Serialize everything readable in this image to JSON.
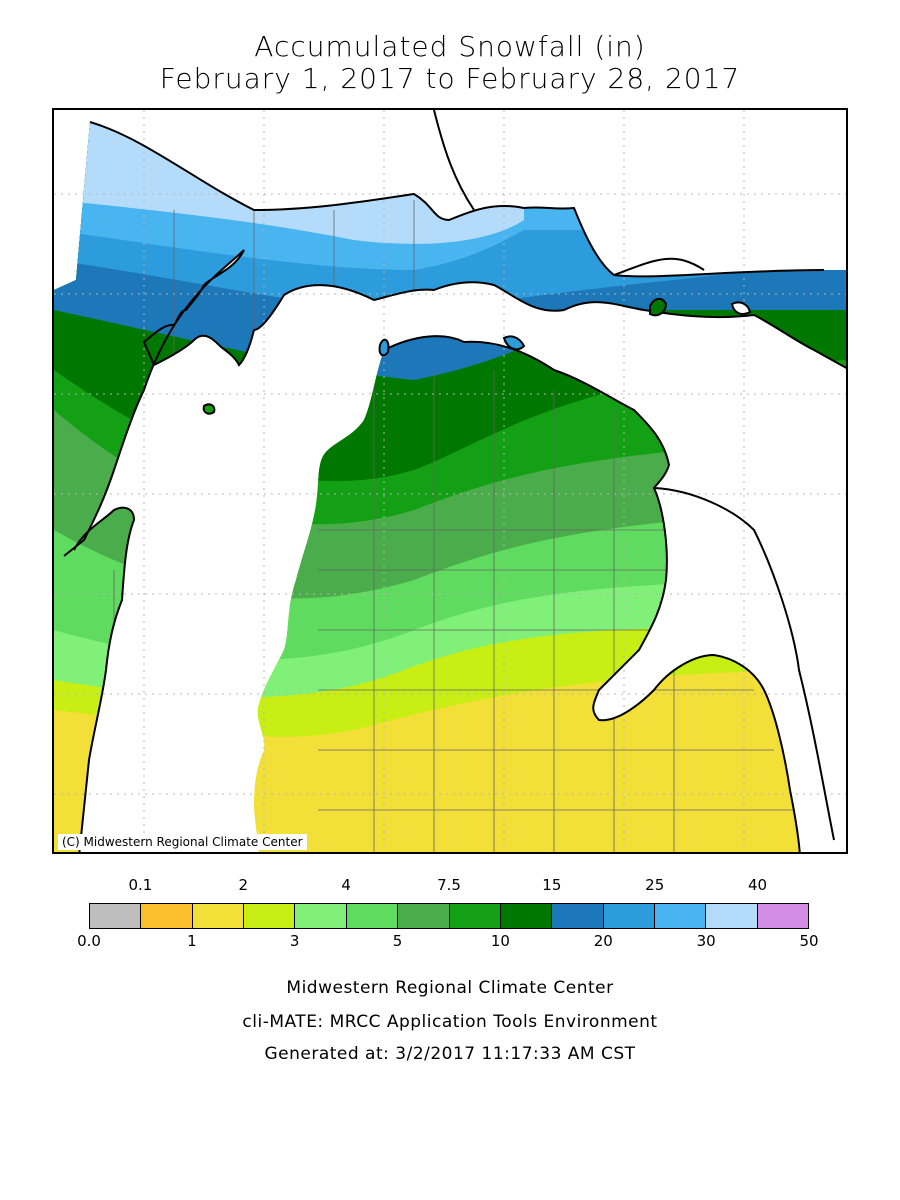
{
  "title": {
    "line1": "Accumulated Snowfall (in)",
    "line2": "February 1, 2017 to February 28, 2017"
  },
  "map": {
    "region": "Michigan",
    "copyright": "(C) Midwestern Regional Climate Center",
    "colors": {
      "water": "#ffffff",
      "outline": "#000000",
      "county_lines": "#666666"
    }
  },
  "legend": {
    "top_labels": [
      "0.1",
      "2",
      "4",
      "7.5",
      "15",
      "25",
      "40"
    ],
    "bottom_labels": [
      "0.0",
      "1",
      "3",
      "5",
      "10",
      "20",
      "30",
      "50"
    ],
    "colors": [
      "#bebebe",
      "#fdbf2d",
      "#f2df38",
      "#c8ee14",
      "#80f078",
      "#5fdc5f",
      "#4aac4a",
      "#14a014",
      "#007800",
      "#1c78b8",
      "#2d9cdc",
      "#48b4f0",
      "#b4dcfa",
      "#d28ce6"
    ]
  },
  "footer": {
    "line1": "Midwestern Regional Climate Center",
    "line2": "cli-MATE: MRCC Application Tools Environment",
    "line3": "Generated at: 3/2/2017 11:17:33 AM CST"
  }
}
